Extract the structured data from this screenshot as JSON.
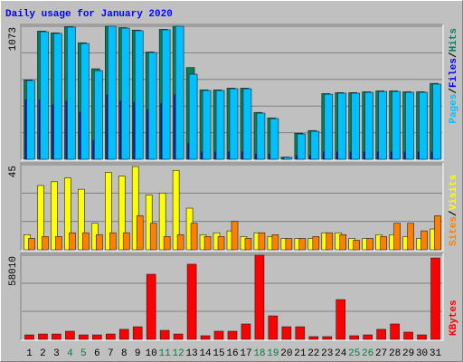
{
  "title": "Daily usage for January 2020",
  "chart_data": [
    {
      "type": "bar",
      "series": [
        {
          "name": "Pages",
          "color": "#00c0ff",
          "values": [
            635,
            1029,
            1015,
            1066,
            934,
            715,
            1073,
            1058,
            1037,
            861,
            1044,
            1073,
            686,
            555,
            555,
            569,
            569,
            372,
            328,
            15,
            204,
            226,
            525,
            533,
            533,
            540,
            547,
            547,
            540,
            540,
            606
          ]
        },
        {
          "name": "Files",
          "color": "#0000ff",
          "values": [
            480,
            480,
            440,
            470,
            380,
            150,
            520,
            470,
            460,
            400,
            450,
            520,
            130,
            60,
            60,
            60,
            60,
            40,
            40,
            5,
            30,
            30,
            60,
            60,
            60,
            60,
            60,
            60,
            60,
            60,
            60
          ]
        },
        {
          "name": "Hits",
          "color": "#00805c",
          "values": [
            640,
            1034,
            1020,
            1070,
            940,
            730,
            1073,
            1062,
            1042,
            866,
            1048,
            1073,
            740,
            560,
            560,
            574,
            574,
            378,
            334,
            18,
            210,
            232,
            530,
            538,
            538,
            545,
            552,
            552,
            545,
            545,
            612
          ]
        }
      ],
      "ylim": [
        0,
        1073
      ],
      "yticks": [
        1073
      ],
      "legend_separator": "/"
    },
    {
      "type": "bar",
      "series": [
        {
          "name": "Sites",
          "color": "#ff8000",
          "values": [
            6,
            7,
            7,
            9,
            9,
            8,
            9,
            9,
            18,
            14,
            7,
            8,
            14,
            7,
            7,
            15,
            6,
            9,
            8,
            6,
            6,
            7,
            9,
            8,
            5,
            6,
            7,
            14,
            14,
            10,
            18
          ]
        },
        {
          "name": "Visits",
          "color": "#ffff00",
          "values": [
            8,
            34,
            36,
            38,
            32,
            14,
            41,
            39,
            44,
            29,
            30,
            42,
            22,
            8,
            9,
            10,
            7,
            9,
            7,
            6,
            6,
            6,
            9,
            9,
            6,
            6,
            8,
            8,
            7,
            6,
            11
          ]
        }
      ],
      "ylim": [
        0,
        45
      ],
      "yticks": [
        45
      ],
      "legend_separator": "/"
    },
    {
      "type": "bar",
      "series": [
        {
          "name": "KBytes",
          "color": "#ff0000",
          "values": [
            3100,
            3700,
            3700,
            5600,
            3100,
            3100,
            3700,
            6900,
            8700,
            44900,
            6200,
            3700,
            51800,
            2500,
            5600,
            5600,
            10600,
            58010,
            16200,
            8700,
            8700,
            1900,
            1900,
            27400,
            2500,
            3100,
            6900,
            10600,
            5000,
            3100,
            56100
          ]
        }
      ],
      "ylim": [
        0,
        58010
      ],
      "yticks": [
        58010
      ],
      "categories": [
        "1",
        "2",
        "3",
        "4",
        "5",
        "6",
        "7",
        "8",
        "9",
        "10",
        "11",
        "12",
        "13",
        "14",
        "15",
        "16",
        "17",
        "18",
        "19",
        "20",
        "21",
        "22",
        "23",
        "24",
        "25",
        "26",
        "27",
        "28",
        "29",
        "30",
        "31"
      ],
      "category_colors": [
        "#000000",
        "#000000",
        "#000000",
        "#008040",
        "#008040",
        "#000000",
        "#000000",
        "#000000",
        "#000000",
        "#000000",
        "#008040",
        "#008040",
        "#000000",
        "#000000",
        "#000000",
        "#000000",
        "#000000",
        "#008040",
        "#008040",
        "#000000",
        "#000000",
        "#000000",
        "#000000",
        "#000000",
        "#008040",
        "#008040",
        "#000000",
        "#000000",
        "#000000",
        "#000000",
        "#000000"
      ]
    }
  ]
}
